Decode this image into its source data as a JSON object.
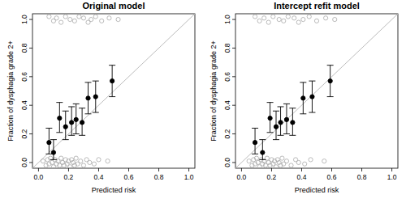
{
  "chart_data": [
    {
      "type": "scatter",
      "title": "Original model",
      "x_label": "Predicted risk",
      "y_label": "Fraction of dysphagia grade 2+",
      "xlim": [
        -0.04,
        1.04
      ],
      "ylim": [
        -0.04,
        1.04
      ],
      "xticks": [
        {
          "value": 0,
          "label": "0.0"
        },
        0.2,
        0.4,
        0.6,
        0.8,
        {
          "value": 1,
          "label": "1.0"
        }
      ],
      "yticks": [
        {
          "value": 0,
          "label": "0.0"
        },
        0.2,
        0.4,
        0.6,
        0.8,
        {
          "value": 1,
          "label": "1.0"
        }
      ],
      "series": [
        {
          "type": "line",
          "color": "#bbbbbb",
          "line_style": "solid",
          "x": [
            -0.04,
            1.04
          ],
          "values": [
            -0.04,
            1.04
          ]
        },
        {
          "type": "scatter",
          "color": "#aaaaaa",
          "marker": "open-circle",
          "x": [
            0.03,
            0.05,
            0.06,
            0.07,
            0.08,
            0.09,
            0.1,
            0.11,
            0.12,
            0.13,
            0.14,
            0.15,
            0.16,
            0.17,
            0.18,
            0.19,
            0.2,
            0.21,
            0.22,
            0.23,
            0.24,
            0.25,
            0.26,
            0.28,
            0.3,
            0.32,
            0.34,
            0.37,
            0.4,
            0.46,
            0.07,
            0.1,
            0.12,
            0.15,
            0.18,
            0.21,
            0.24,
            0.27,
            0.3,
            0.33,
            0.35,
            0.38,
            0.42,
            0.47,
            0.53
          ],
          "values": [
            0.01,
            -0.02,
            0.02,
            -0.01,
            0.03,
            0.0,
            -0.03,
            0.02,
            -0.01,
            0.01,
            -0.02,
            0.03,
            0.0,
            -0.02,
            0.02,
            -0.01,
            0.01,
            -0.03,
            0.02,
            0.0,
            -0.02,
            0.03,
            -0.01,
            0.01,
            -0.02,
            0.02,
            0.0,
            -0.01,
            0.02,
            0.01,
            1.02,
            0.99,
            1.01,
            0.98,
            1.02,
            1.0,
            0.99,
            1.02,
            1.01,
            0.98,
            1.0,
            1.02,
            0.99,
            1.01,
            1.0
          ]
        },
        {
          "type": "errorbar",
          "color": "#000000",
          "marker": "filled-circle",
          "x": [
            0.07,
            0.1,
            0.14,
            0.18,
            0.22,
            0.25,
            0.29,
            0.33,
            0.38,
            0.49
          ],
          "values": [
            0.14,
            0.07,
            0.31,
            0.25,
            0.28,
            0.3,
            0.28,
            0.45,
            0.46,
            0.57
          ],
          "lower": [
            0.06,
            0.02,
            0.21,
            0.16,
            0.19,
            0.2,
            0.19,
            0.34,
            0.35,
            0.46
          ],
          "upper": [
            0.24,
            0.16,
            0.42,
            0.36,
            0.39,
            0.41,
            0.38,
            0.56,
            0.57,
            0.68
          ]
        }
      ]
    },
    {
      "type": "scatter",
      "title": "Intercept refit model",
      "x_label": "Predicted risk",
      "y_label": "Fraction of dysphagia grade 2+",
      "xlim": [
        -0.04,
        1.04
      ],
      "ylim": [
        -0.04,
        1.04
      ],
      "xticks": [
        {
          "value": 0,
          "label": "0.0"
        },
        0.2,
        0.4,
        0.6,
        0.8,
        {
          "value": 1,
          "label": "1.0"
        }
      ],
      "yticks": [
        {
          "value": 0,
          "label": "0.0"
        },
        0.2,
        0.4,
        0.6,
        0.8,
        {
          "value": 1,
          "label": "1.0"
        }
      ],
      "series": [
        {
          "type": "line",
          "color": "#bbbbbb",
          "line_style": "solid",
          "x": [
            -0.04,
            1.04
          ],
          "values": [
            -0.04,
            1.04
          ]
        },
        {
          "type": "scatter",
          "color": "#aaaaaa",
          "marker": "open-circle",
          "x": [
            0.05,
            0.07,
            0.08,
            0.09,
            0.1,
            0.11,
            0.12,
            0.13,
            0.14,
            0.15,
            0.16,
            0.17,
            0.18,
            0.19,
            0.2,
            0.21,
            0.22,
            0.23,
            0.24,
            0.25,
            0.26,
            0.27,
            0.28,
            0.3,
            0.33,
            0.36,
            0.38,
            0.42,
            0.46,
            0.55,
            0.09,
            0.12,
            0.15,
            0.18,
            0.21,
            0.25,
            0.28,
            0.31,
            0.35,
            0.38,
            0.41,
            0.45,
            0.5,
            0.56,
            0.62
          ],
          "values": [
            0.01,
            -0.02,
            0.02,
            -0.01,
            0.03,
            0.0,
            -0.03,
            0.02,
            -0.01,
            0.01,
            -0.02,
            0.03,
            0.0,
            -0.02,
            0.02,
            -0.01,
            0.01,
            -0.03,
            0.02,
            0.0,
            -0.02,
            0.03,
            -0.01,
            0.01,
            -0.02,
            0.02,
            0.0,
            -0.01,
            0.02,
            0.01,
            1.02,
            0.99,
            1.01,
            0.98,
            1.02,
            1.0,
            0.99,
            1.02,
            1.01,
            0.98,
            1.0,
            1.02,
            0.99,
            1.01,
            1.0
          ]
        },
        {
          "type": "errorbar",
          "color": "#000000",
          "marker": "filled-circle",
          "x": [
            0.09,
            0.14,
            0.19,
            0.23,
            0.26,
            0.3,
            0.34,
            0.41,
            0.47,
            0.59
          ],
          "values": [
            0.14,
            0.07,
            0.31,
            0.25,
            0.28,
            0.3,
            0.28,
            0.45,
            0.46,
            0.57
          ],
          "lower": [
            0.06,
            0.02,
            0.21,
            0.16,
            0.19,
            0.2,
            0.19,
            0.34,
            0.35,
            0.46
          ],
          "upper": [
            0.24,
            0.16,
            0.42,
            0.36,
            0.39,
            0.41,
            0.38,
            0.56,
            0.57,
            0.68
          ]
        }
      ]
    }
  ]
}
